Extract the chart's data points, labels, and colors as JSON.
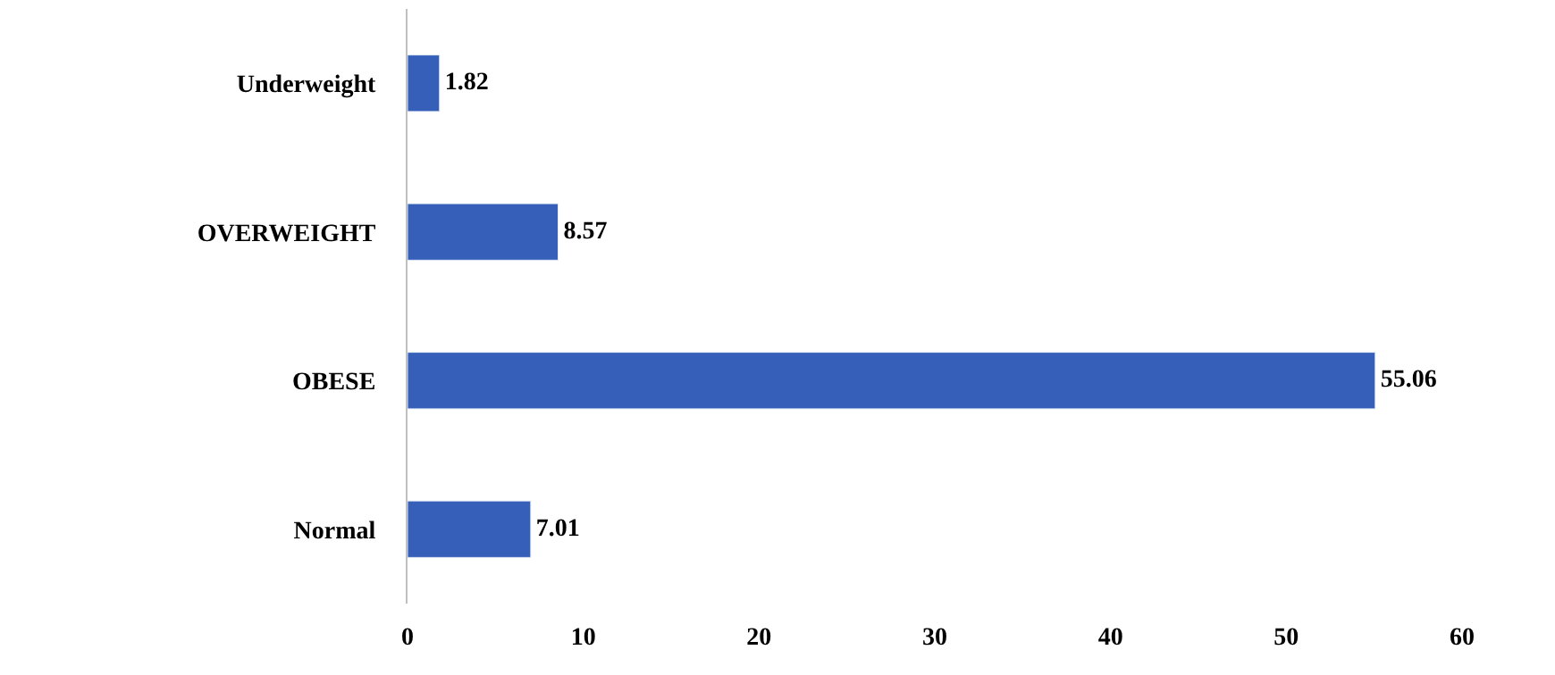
{
  "chart_data": {
    "type": "bar",
    "orientation": "horizontal",
    "categories": [
      "Underweight",
      "OVERWEIGHT",
      "OBESE",
      "Normal"
    ],
    "values": [
      1.82,
      8.57,
      55.06,
      7.01
    ],
    "color": "#355fb8",
    "data_labels": true,
    "xlim": [
      0,
      60
    ],
    "xticks": [
      0,
      10,
      20,
      30,
      40,
      50,
      60
    ]
  }
}
